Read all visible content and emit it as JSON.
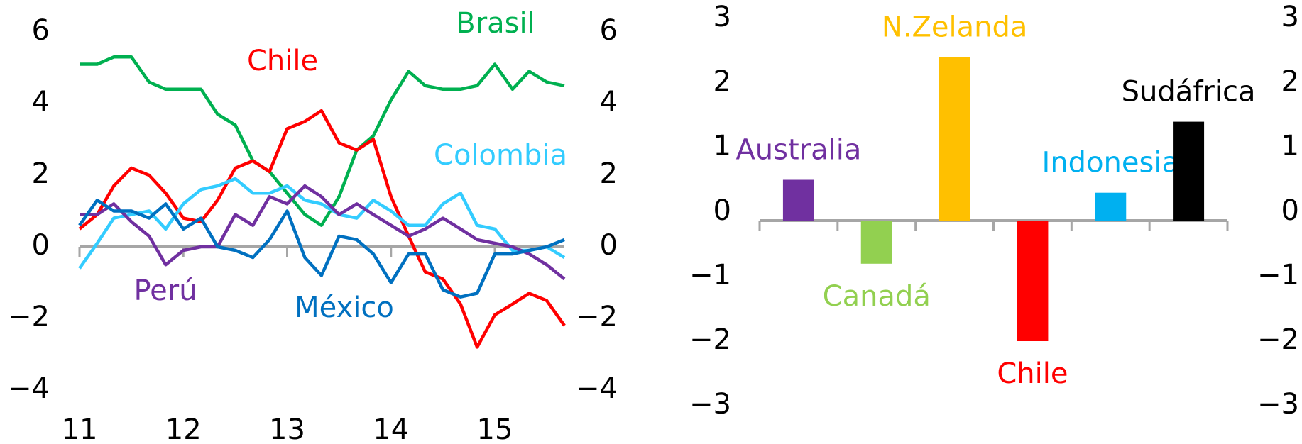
{
  "chart_data": [
    {
      "type": "line",
      "x": [
        11,
        11.17,
        11.33,
        11.5,
        11.67,
        11.83,
        12,
        12.17,
        12.33,
        12.5,
        12.67,
        12.83,
        13,
        13.17,
        13.33,
        13.5,
        13.67,
        13.83,
        14,
        14.17,
        14.33,
        14.5,
        14.67,
        14.83,
        15,
        15.17,
        15.33,
        15.5,
        15.67
      ],
      "xlim": [
        11,
        15.67
      ],
      "xticks": [
        11,
        12,
        13,
        14,
        15
      ],
      "ylim": [
        -4,
        6
      ],
      "yticks": [
        6,
        4,
        2,
        0,
        {
          "value": -2,
          "label": "−2"
        },
        {
          "value": -4,
          "label": "−4"
        }
      ],
      "series": [
        {
          "name": "Brasil",
          "color": "#00b050",
          "values": [
            5.1,
            5.1,
            5.3,
            5.3,
            4.6,
            4.4,
            4.4,
            4.4,
            3.7,
            3.4,
            2.4,
            2.1,
            1.5,
            0.9,
            0.6,
            1.4,
            2.7,
            3.1,
            4.1,
            4.9,
            4.5,
            4.4,
            4.4,
            4.5,
            5.1,
            4.4,
            4.9,
            4.6,
            4.5
          ]
        },
        {
          "name": "Chile",
          "color": "#ff0000",
          "values": [
            0.5,
            0.9,
            1.7,
            2.2,
            2.0,
            1.5,
            0.8,
            0.7,
            1.3,
            2.2,
            2.4,
            2.1,
            3.3,
            3.5,
            3.8,
            2.9,
            2.7,
            3.0,
            1.4,
            0.3,
            -0.7,
            -0.9,
            -1.6,
            -2.8,
            -1.9,
            -1.6,
            -1.3,
            -1.5,
            -2.2
          ]
        },
        {
          "name": "Colombia",
          "color": "#33ccff",
          "values": [
            -0.6,
            0.1,
            0.8,
            0.9,
            1.0,
            0.5,
            1.2,
            1.6,
            1.7,
            1.9,
            1.5,
            1.5,
            1.7,
            1.3,
            1.2,
            0.9,
            0.8,
            1.3,
            1.0,
            0.6,
            0.6,
            1.2,
            1.5,
            0.6,
            0.5,
            -0.1,
            -0.1,
            0.0,
            -0.3
          ]
        },
        {
          "name": "Perú",
          "color": "#7030a0",
          "values": [
            0.9,
            0.9,
            1.2,
            0.7,
            0.3,
            -0.5,
            -0.1,
            0.0,
            0.0,
            0.9,
            0.6,
            1.4,
            1.2,
            1.7,
            1.4,
            0.9,
            1.2,
            0.9,
            0.6,
            0.3,
            0.5,
            0.8,
            0.5,
            0.2,
            0.1,
            0.0,
            -0.2,
            -0.5,
            -0.9
          ]
        },
        {
          "name": "México",
          "color": "#0070c0",
          "values": [
            0.6,
            1.3,
            1.0,
            1.0,
            0.8,
            1.2,
            0.5,
            0.8,
            0.0,
            -0.1,
            -0.3,
            0.2,
            1.0,
            -0.3,
            -0.8,
            0.3,
            0.2,
            -0.2,
            -1.0,
            -0.2,
            -0.2,
            -1.2,
            -1.4,
            -1.3,
            -0.2,
            -0.2,
            -0.1,
            0.0,
            0.2
          ]
        }
      ]
    },
    {
      "type": "bar",
      "categories": [
        "Australia",
        "Canadá",
        "N.Zelanda",
        "Chile",
        "Indonesia",
        "Sudáfrica"
      ],
      "values": [
        0.5,
        -0.8,
        2.4,
        -2.0,
        0.3,
        1.4
      ],
      "colors": [
        "#7030a0",
        "#92d050",
        "#ffc000",
        "#ff0000",
        "#00b0f0",
        "#000000"
      ],
      "ylim": [
        -3,
        3
      ],
      "yticks": [
        3,
        2,
        1,
        0,
        {
          "value": -1,
          "label": "−1"
        },
        {
          "value": -2,
          "label": "−2"
        },
        {
          "value": -3,
          "label": "−3"
        }
      ]
    }
  ]
}
